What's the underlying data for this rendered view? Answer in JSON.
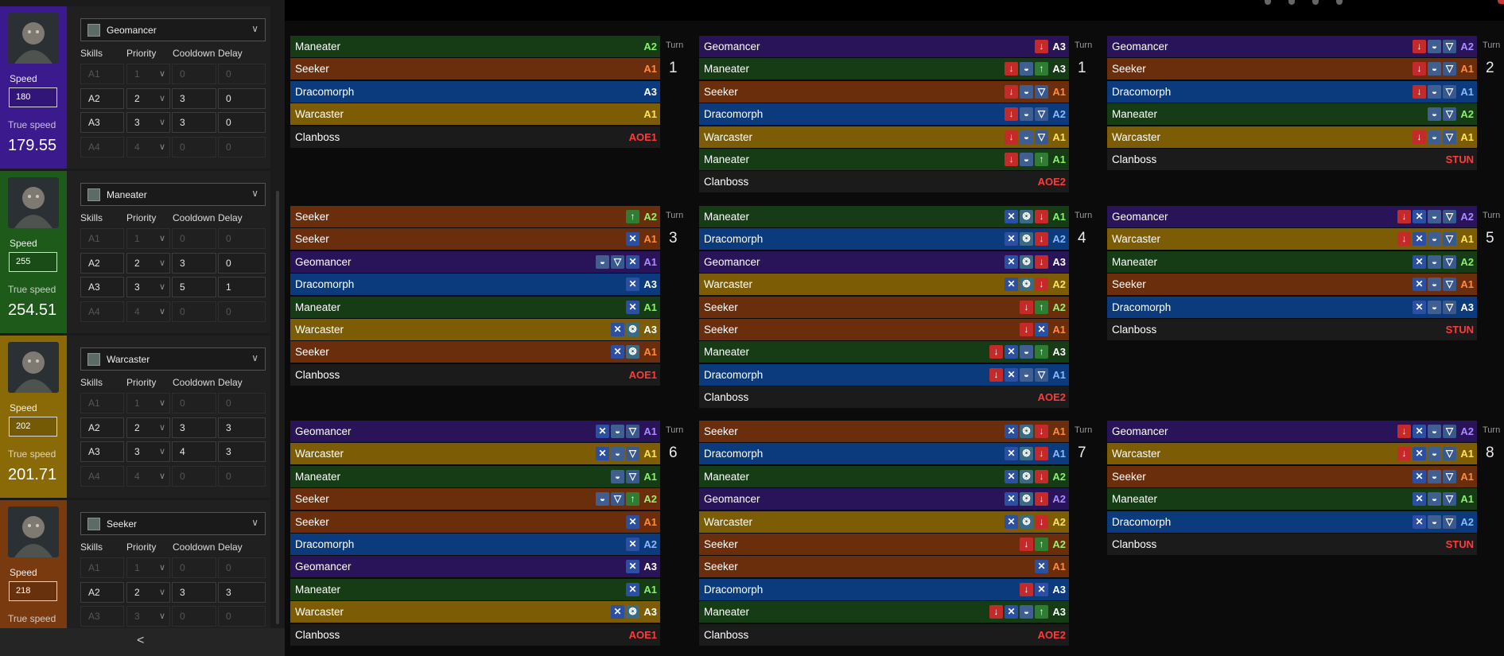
{
  "sidebar": {
    "collapse_glyph": "<",
    "headers": {
      "skills": "Skills",
      "priority": "Priority",
      "cooldown": "Cooldown",
      "delay": "Delay"
    },
    "speed_label": "Speed",
    "true_speed_label": "True speed",
    "champions": [
      {
        "name": "Geomancer",
        "color": "#3a1a8c",
        "speed": "180",
        "true_speed": "179.55",
        "skills": [
          {
            "name": "A1",
            "priority": "1",
            "cooldown": "0",
            "delay": "0",
            "disabled": true
          },
          {
            "name": "A2",
            "priority": "2",
            "cooldown": "3",
            "delay": "0",
            "disabled": false
          },
          {
            "name": "A3",
            "priority": "3",
            "cooldown": "3",
            "delay": "0",
            "disabled": false
          },
          {
            "name": "A4",
            "priority": "4",
            "cooldown": "0",
            "delay": "0",
            "disabled": true
          }
        ]
      },
      {
        "name": "Maneater",
        "color": "#1e5a1a",
        "speed": "255",
        "true_speed": "254.51",
        "skills": [
          {
            "name": "A1",
            "priority": "1",
            "cooldown": "0",
            "delay": "0",
            "disabled": true
          },
          {
            "name": "A2",
            "priority": "2",
            "cooldown": "3",
            "delay": "0",
            "disabled": false
          },
          {
            "name": "A3",
            "priority": "3",
            "cooldown": "5",
            "delay": "1",
            "disabled": false
          },
          {
            "name": "A4",
            "priority": "4",
            "cooldown": "0",
            "delay": "0",
            "disabled": true
          }
        ]
      },
      {
        "name": "Warcaster",
        "color": "#8a6a06",
        "speed": "202",
        "true_speed": "201.71",
        "skills": [
          {
            "name": "A1",
            "priority": "1",
            "cooldown": "0",
            "delay": "0",
            "disabled": true
          },
          {
            "name": "A2",
            "priority": "2",
            "cooldown": "3",
            "delay": "3",
            "disabled": false
          },
          {
            "name": "A3",
            "priority": "3",
            "cooldown": "4",
            "delay": "3",
            "disabled": false
          },
          {
            "name": "A4",
            "priority": "4",
            "cooldown": "0",
            "delay": "0",
            "disabled": true
          }
        ]
      },
      {
        "name": "Seeker",
        "color": "#7a3a10",
        "speed": "218",
        "true_speed": "",
        "skills": [
          {
            "name": "A1",
            "priority": "1",
            "cooldown": "0",
            "delay": "0",
            "disabled": true
          },
          {
            "name": "A2",
            "priority": "2",
            "cooldown": "3",
            "delay": "3",
            "disabled": false
          },
          {
            "name": "A3",
            "priority": "3",
            "cooldown": "0",
            "delay": "0",
            "disabled": true
          }
        ]
      }
    ]
  },
  "turn_label": "Turn",
  "turns": [
    {
      "number": "1",
      "rows": [
        {
          "name": "Maneater",
          "tag": "A2",
          "icons": []
        },
        {
          "name": "Seeker",
          "tag": "A1",
          "icons": []
        },
        {
          "name": "Dracomorph",
          "tag": "A3",
          "icons": []
        },
        {
          "name": "Warcaster",
          "tag": "A1",
          "icons": []
        },
        {
          "name": "Clanboss",
          "tag": "AOE1",
          "icons": []
        }
      ]
    },
    {
      "number": "1",
      "rows": [
        {
          "name": "Geomancer",
          "tag": "A3",
          "icons": [
            "decrease-speed"
          ]
        },
        {
          "name": "Maneater",
          "tag": "A3",
          "icons": [
            "decrease-speed",
            "helmet",
            "increase-attack"
          ]
        },
        {
          "name": "Seeker",
          "tag": "A1",
          "icons": [
            "decrease-speed",
            "helmet",
            "shield"
          ]
        },
        {
          "name": "Dracomorph",
          "tag": "A2",
          "icons": [
            "decrease-speed",
            "helmet",
            "shield"
          ]
        },
        {
          "name": "Warcaster",
          "tag": "A1",
          "icons": [
            "decrease-speed",
            "helmet",
            "shield"
          ]
        },
        {
          "name": "Maneater",
          "tag": "A1",
          "icons": [
            "decrease-speed",
            "helmet",
            "increase-attack"
          ]
        },
        {
          "name": "Clanboss",
          "tag": "AOE2",
          "icons": []
        }
      ]
    },
    {
      "number": "2",
      "rows": [
        {
          "name": "Geomancer",
          "tag": "A2",
          "icons": [
            "decrease-speed",
            "helmet",
            "shield"
          ]
        },
        {
          "name": "Seeker",
          "tag": "A1",
          "icons": [
            "decrease-speed",
            "helmet",
            "shield"
          ]
        },
        {
          "name": "Dracomorph",
          "tag": "A1",
          "icons": [
            "decrease-speed",
            "helmet",
            "shield"
          ]
        },
        {
          "name": "Maneater",
          "tag": "A2",
          "icons": [
            "helmet",
            "shield"
          ]
        },
        {
          "name": "Warcaster",
          "tag": "A1",
          "icons": [
            "decrease-speed",
            "helmet",
            "shield"
          ]
        },
        {
          "name": "Clanboss",
          "tag": "STUN",
          "icons": []
        }
      ]
    },
    {
      "number": "3",
      "rows": [
        {
          "name": "Seeker",
          "tag": "A2",
          "icons": [
            "increase-attack"
          ]
        },
        {
          "name": "Seeker",
          "tag": "A1",
          "icons": [
            "crossed-swords"
          ]
        },
        {
          "name": "Geomancer",
          "tag": "A1",
          "icons": [
            "helmet",
            "shield",
            "crossed-swords"
          ]
        },
        {
          "name": "Dracomorph",
          "tag": "A3",
          "icons": [
            "crossed-swords"
          ]
        },
        {
          "name": "Maneater",
          "tag": "A1",
          "icons": [
            "crossed-swords"
          ]
        },
        {
          "name": "Warcaster",
          "tag": "A3",
          "icons": [
            "crossed-swords",
            "bird"
          ]
        },
        {
          "name": "Seeker",
          "tag": "A1",
          "icons": [
            "crossed-swords",
            "bird"
          ]
        },
        {
          "name": "Clanboss",
          "tag": "AOE1",
          "icons": []
        }
      ]
    },
    {
      "number": "4",
      "rows": [
        {
          "name": "Maneater",
          "tag": "A1",
          "icons": [
            "crossed-swords",
            "bird",
            "decrease-speed"
          ]
        },
        {
          "name": "Dracomorph",
          "tag": "A2",
          "icons": [
            "crossed-swords",
            "bird",
            "decrease-speed"
          ]
        },
        {
          "name": "Geomancer",
          "tag": "A3",
          "icons": [
            "crossed-swords",
            "bird",
            "decrease-speed"
          ]
        },
        {
          "name": "Warcaster",
          "tag": "A2",
          "icons": [
            "crossed-swords",
            "bird",
            "decrease-speed"
          ]
        },
        {
          "name": "Seeker",
          "tag": "A2",
          "icons": [
            "decrease-speed",
            "increase-attack"
          ]
        },
        {
          "name": "Seeker",
          "tag": "A1",
          "icons": [
            "decrease-speed",
            "crossed-swords"
          ]
        },
        {
          "name": "Maneater",
          "tag": "A3",
          "icons": [
            "decrease-speed",
            "crossed-swords",
            "helmet",
            "increase-attack"
          ]
        },
        {
          "name": "Dracomorph",
          "tag": "A1",
          "icons": [
            "decrease-speed",
            "crossed-swords",
            "helmet",
            "shield"
          ]
        },
        {
          "name": "Clanboss",
          "tag": "AOE2",
          "icons": []
        }
      ]
    },
    {
      "number": "5",
      "rows": [
        {
          "name": "Geomancer",
          "tag": "A2",
          "icons": [
            "decrease-speed",
            "crossed-swords",
            "helmet",
            "shield"
          ]
        },
        {
          "name": "Warcaster",
          "tag": "A1",
          "icons": [
            "decrease-speed",
            "crossed-swords",
            "helmet",
            "shield"
          ]
        },
        {
          "name": "Maneater",
          "tag": "A2",
          "icons": [
            "crossed-swords",
            "helmet",
            "shield"
          ]
        },
        {
          "name": "Seeker",
          "tag": "A1",
          "icons": [
            "crossed-swords",
            "helmet",
            "shield"
          ]
        },
        {
          "name": "Dracomorph",
          "tag": "A3",
          "icons": [
            "crossed-swords",
            "helmet",
            "shield"
          ]
        },
        {
          "name": "Clanboss",
          "tag": "STUN",
          "icons": []
        }
      ]
    },
    {
      "number": "6",
      "rows": [
        {
          "name": "Geomancer",
          "tag": "A1",
          "icons": [
            "crossed-swords",
            "helmet",
            "shield"
          ]
        },
        {
          "name": "Warcaster",
          "tag": "A1",
          "icons": [
            "crossed-swords",
            "helmet",
            "shield"
          ]
        },
        {
          "name": "Maneater",
          "tag": "A1",
          "icons": [
            "helmet",
            "shield"
          ]
        },
        {
          "name": "Seeker",
          "tag": "A2",
          "icons": [
            "helmet",
            "shield",
            "increase-attack"
          ]
        },
        {
          "name": "Seeker",
          "tag": "A1",
          "icons": [
            "crossed-swords"
          ]
        },
        {
          "name": "Dracomorph",
          "tag": "A2",
          "icons": [
            "crossed-swords"
          ]
        },
        {
          "name": "Geomancer",
          "tag": "A3",
          "icons": [
            "crossed-swords"
          ]
        },
        {
          "name": "Maneater",
          "tag": "A1",
          "icons": [
            "crossed-swords"
          ]
        },
        {
          "name": "Warcaster",
          "tag": "A3",
          "icons": [
            "crossed-swords",
            "bird"
          ]
        },
        {
          "name": "Clanboss",
          "tag": "AOE1",
          "icons": []
        }
      ]
    },
    {
      "number": "7",
      "rows": [
        {
          "name": "Seeker",
          "tag": "A1",
          "icons": [
            "crossed-swords",
            "bird",
            "decrease-speed"
          ]
        },
        {
          "name": "Dracomorph",
          "tag": "A1",
          "icons": [
            "crossed-swords",
            "bird",
            "decrease-speed"
          ]
        },
        {
          "name": "Maneater",
          "tag": "A2",
          "icons": [
            "crossed-swords",
            "bird",
            "decrease-speed"
          ]
        },
        {
          "name": "Geomancer",
          "tag": "A2",
          "icons": [
            "crossed-swords",
            "bird",
            "decrease-speed"
          ]
        },
        {
          "name": "Warcaster",
          "tag": "A2",
          "icons": [
            "crossed-swords",
            "bird",
            "decrease-speed"
          ]
        },
        {
          "name": "Seeker",
          "tag": "A2",
          "icons": [
            "decrease-speed",
            "increase-attack"
          ]
        },
        {
          "name": "Seeker",
          "tag": "A1",
          "icons": [
            "crossed-swords"
          ]
        },
        {
          "name": "Dracomorph",
          "tag": "A3",
          "icons": [
            "decrease-speed",
            "crossed-swords"
          ]
        },
        {
          "name": "Maneater",
          "tag": "A3",
          "icons": [
            "decrease-speed",
            "crossed-swords",
            "helmet",
            "increase-attack"
          ]
        },
        {
          "name": "Clanboss",
          "tag": "AOE2",
          "icons": []
        }
      ]
    },
    {
      "number": "8",
      "rows": [
        {
          "name": "Geomancer",
          "tag": "A2",
          "icons": [
            "decrease-speed",
            "crossed-swords",
            "helmet",
            "shield"
          ]
        },
        {
          "name": "Warcaster",
          "tag": "A1",
          "icons": [
            "decrease-speed",
            "crossed-swords",
            "helmet",
            "shield"
          ]
        },
        {
          "name": "Seeker",
          "tag": "A1",
          "icons": [
            "crossed-swords",
            "helmet",
            "shield"
          ]
        },
        {
          "name": "Maneater",
          "tag": "A1",
          "icons": [
            "crossed-swords",
            "helmet",
            "shield"
          ]
        },
        {
          "name": "Dracomorph",
          "tag": "A2",
          "icons": [
            "crossed-swords",
            "helmet",
            "shield"
          ]
        },
        {
          "name": "Clanboss",
          "tag": "STUN",
          "icons": []
        }
      ]
    }
  ]
}
